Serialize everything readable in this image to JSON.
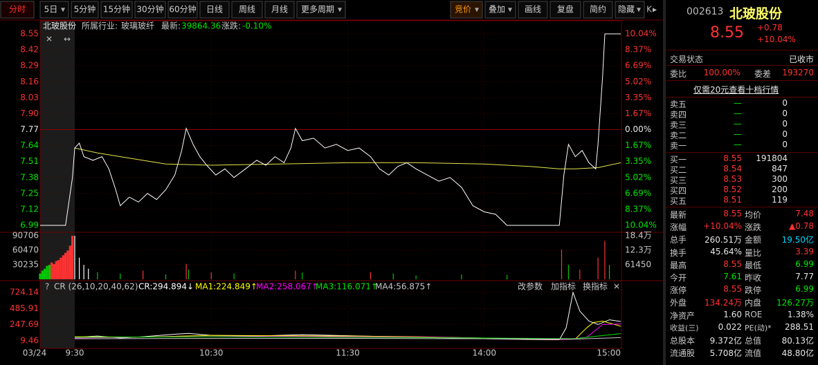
{
  "toolbar": {
    "left": [
      "分时",
      "5日",
      "5分钟",
      "15分钟",
      "30分钟",
      "60分钟",
      "日线",
      "周线",
      "月线",
      "更多周期"
    ],
    "right": [
      "竞价",
      "叠加",
      "画线",
      "复盘",
      "简约",
      "隐藏"
    ]
  },
  "info_line": {
    "name": "北玻股份",
    "industry_label": "所属行业:",
    "industry": "玻璃玻纤",
    "latest_label": "最新:",
    "latest": "39864.36",
    "change_label": "涨跌:",
    "change": "-0.10%"
  },
  "price_chart": {
    "xlim": [
      -15,
      240
    ],
    "x_labels": [
      {
        "value": -15,
        "label": "03/24"
      },
      {
        "value": 0,
        "label": "9:30"
      },
      {
        "value": 60,
        "label": "10:30"
      },
      {
        "value": 120,
        "label": "11:30"
      },
      {
        "value": 180,
        "label": "14:00"
      },
      {
        "value": 240,
        "label": "15:00"
      }
    ],
    "ylim": [
      6.99,
      8.55
    ],
    "yticks": [
      8.55,
      8.42,
      8.29,
      8.16,
      8.03,
      {
        "value": 7.9,
        "label": "7.90"
      },
      7.77,
      7.64,
      7.51,
      7.38,
      7.25,
      7.12,
      6.99
    ],
    "pct_labels": [
      "10.04%",
      "8.37%",
      "6.69%",
      "5.02%",
      "3.35%",
      "1.67%",
      "0.00%",
      "1.67%",
      "3.35%",
      "5.02%",
      "6.69%",
      "8.37%",
      "10.04%"
    ],
    "price": {
      "color": "#ffffff",
      "x": [
        -15,
        -4,
        -1,
        0,
        2,
        4,
        8,
        12,
        15,
        18,
        20,
        24,
        28,
        32,
        36,
        40,
        44,
        47,
        49,
        52,
        55,
        58,
        62,
        66,
        70,
        75,
        80,
        84,
        88,
        92,
        95,
        97,
        100,
        105,
        110,
        115,
        120,
        125,
        130,
        134,
        138,
        142,
        146,
        150,
        155,
        160,
        165,
        170,
        175,
        180,
        185,
        190,
        213,
        215,
        217,
        220,
        223,
        226,
        229,
        230,
        232,
        233,
        240
      ],
      "values": [
        6.99,
        6.99,
        7.38,
        7.62,
        7.66,
        7.55,
        7.52,
        7.55,
        7.45,
        7.28,
        7.15,
        7.22,
        7.18,
        7.25,
        7.2,
        7.28,
        7.4,
        7.6,
        7.78,
        7.65,
        7.55,
        7.48,
        7.4,
        7.45,
        7.38,
        7.45,
        7.52,
        7.48,
        7.55,
        7.5,
        7.62,
        7.78,
        7.68,
        7.7,
        7.62,
        7.65,
        7.6,
        7.62,
        7.55,
        7.45,
        7.4,
        7.47,
        7.5,
        7.45,
        7.4,
        7.35,
        7.38,
        7.3,
        7.15,
        7.1,
        7.08,
        6.99,
        6.99,
        7.4,
        7.65,
        7.55,
        7.6,
        7.5,
        7.45,
        7.65,
        8.2,
        8.55,
        8.55
      ]
    },
    "average": {
      "color": "#e6e64c",
      "x": [
        0,
        10,
        20,
        40,
        60,
        90,
        120,
        150,
        180,
        200,
        213,
        220,
        230,
        240
      ],
      "values": [
        7.62,
        7.58,
        7.55,
        7.49,
        7.48,
        7.49,
        7.5,
        7.5,
        7.49,
        7.47,
        7.45,
        7.45,
        7.46,
        7.5
      ]
    }
  },
  "volume_chart": {
    "ylim": [
      0,
      90706
    ],
    "yticks": [
      90706,
      60470,
      30235
    ],
    "right_labels": [
      "18.4万",
      "12.3万",
      "61450"
    ],
    "bars": {
      "x": [
        -15,
        -14,
        -13,
        -12,
        -11,
        -10,
        -9,
        -8,
        -7,
        -6,
        -5,
        -4,
        -3,
        -2,
        -1,
        0,
        2,
        4,
        6,
        10,
        20,
        30,
        40,
        49,
        50,
        60,
        70,
        97,
        100,
        130,
        140,
        150,
        170,
        190,
        214,
        217,
        222,
        230,
        233,
        235
      ],
      "values": [
        12000,
        18000,
        22000,
        28000,
        30000,
        35000,
        32000,
        38000,
        40000,
        45000,
        50000,
        55000,
        60000,
        70000,
        90706,
        90706,
        45000,
        30000,
        22000,
        15000,
        12000,
        18000,
        10000,
        32000,
        20000,
        15000,
        12000,
        18000,
        14000,
        15000,
        12000,
        8000,
        10000,
        9000,
        62000,
        30000,
        20000,
        45000,
        80000,
        30000
      ],
      "colors": [
        "#00c800",
        "#00c800",
        "#00c800",
        "#00c800",
        "#00c800",
        "#ff3232",
        "#ff3232",
        "#ff3232",
        "#ff3232",
        "#ff3232",
        "#ff3232",
        "#ff3232",
        "#ff3232",
        "#ff3232",
        "#ff3232",
        "#ffffff",
        "#ffffff",
        "#ffffff",
        "#ffffff",
        "#00c800",
        "#00c800",
        "#ff3232",
        "#00c800",
        "#ff3232",
        "#00c800",
        "#ff3232",
        "#00c800",
        "#ff3232",
        "#00c800",
        "#ff3232",
        "#00c800",
        "#00c800",
        "#00c800",
        "#00c800",
        "#ff3232",
        "#00c800",
        "#ff3232",
        "#ff3232",
        "#ff3232",
        "#00c800"
      ]
    }
  },
  "cr_chart": {
    "title": "CR (26,10,20,40,62)",
    "buttons": [
      "改参数",
      "加指标",
      "换指标"
    ],
    "ylim": [
      9.46,
      724.14
    ],
    "yticks": [
      724.14,
      485.91,
      247.69,
      9.46
    ],
    "series": [
      {
        "name": "CR:294.894↓",
        "color": "#ffffff",
        "x": [
          0,
          10,
          20,
          30,
          45,
          50,
          60,
          80,
          100,
          120,
          150,
          180,
          200,
          213,
          216,
          219,
          222,
          226,
          230,
          235,
          240
        ],
        "values": [
          60,
          80,
          50,
          70,
          110,
          120,
          90,
          80,
          100,
          85,
          60,
          40,
          30,
          25,
          200,
          724,
          450,
          300,
          250,
          320,
          294.894
        ]
      },
      {
        "name": "MA1:224.849↑",
        "color": "#ffff00",
        "x": [
          0,
          30,
          60,
          90,
          120,
          150,
          180,
          213,
          220,
          225,
          228,
          232,
          240
        ],
        "values": [
          70,
          65,
          90,
          85,
          80,
          70,
          50,
          30,
          35,
          200,
          280,
          300,
          224.849
        ]
      },
      {
        "name": "MA2:258.067↑",
        "color": "#ff00ff",
        "x": [
          0,
          40,
          80,
          120,
          160,
          200,
          216,
          225,
          232,
          240
        ],
        "values": [
          50,
          70,
          75,
          70,
          60,
          40,
          30,
          60,
          250,
          258.067
        ]
      },
      {
        "name": "MA3:116.071↑",
        "color": "#00e600",
        "x": [
          0,
          60,
          120,
          180,
          220,
          230,
          240
        ],
        "values": [
          60,
          70,
          60,
          50,
          40,
          80,
          116.071
        ]
      },
      {
        "name": "MA4:56.875↑",
        "color": "#c8c8c8",
        "x": [
          0,
          60,
          120,
          180,
          220,
          240
        ],
        "values": [
          40,
          45,
          45,
          40,
          35,
          56.875
        ]
      }
    ]
  },
  "quote": {
    "code": "002613",
    "name": "北玻股份",
    "price": "8.55",
    "change": "+0.78",
    "change_pct": "+10.04%"
  },
  "status": {
    "label": "交易状态",
    "value": "已收市"
  },
  "ratio": [
    "委比",
    "100.00%",
    "委差",
    "193270"
  ],
  "promo": "仅需20元查看十档行情",
  "asks": [
    [
      "卖五",
      "—",
      "0"
    ],
    [
      "卖四",
      "—",
      "0"
    ],
    [
      "卖三",
      "—",
      "0"
    ],
    [
      "卖二",
      "—",
      "0"
    ],
    [
      "卖一",
      "—",
      "0"
    ]
  ],
  "bids": [
    [
      "买一",
      "8.55",
      "191804"
    ],
    [
      "买二",
      "8.54",
      "847"
    ],
    [
      "买三",
      "8.53",
      "300"
    ],
    [
      "买四",
      "8.52",
      "200"
    ],
    [
      "买五",
      "8.51",
      "119"
    ]
  ],
  "stats": [
    [
      "最新",
      "8.55",
      "均价",
      "7.48"
    ],
    [
      "涨幅",
      "+10.04%",
      "涨跌",
      "▲0.78"
    ],
    [
      "总手",
      "260.51万",
      "金额",
      "19.50亿"
    ],
    [
      "换手",
      "45.64%",
      "量比",
      "3.39"
    ],
    [
      "最高",
      "8.55",
      "最低",
      "6.99"
    ],
    [
      "今开",
      "7.61",
      "昨收",
      "7.77"
    ],
    [
      "涨停",
      "8.55",
      "跌停",
      "6.99"
    ],
    [
      "外盘",
      "134.24万",
      "内盘",
      "126.27万"
    ],
    [
      "净资产",
      "1.60",
      "ROE",
      "1.38%"
    ],
    [
      "收益(三)",
      "0.022",
      "PE(动)*",
      "288.51"
    ],
    [
      "总股本",
      "9.372亿",
      "总值",
      "80.13亿"
    ],
    [
      "流通股",
      "5.708亿",
      "流值",
      "48.80亿"
    ]
  ]
}
